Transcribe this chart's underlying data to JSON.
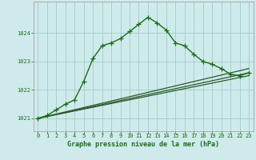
{
  "title": "Graphe pression niveau de la mer (hPa)",
  "background_color": "#ceeaea",
  "grid_color": "#a0cccc",
  "line_color_main": "#1a6e1a",
  "line_color_secondary": "#2a5a2a",
  "xlim": [
    -0.5,
    23.5
  ],
  "ylim": [
    1020.55,
    1025.1
  ],
  "yticks": [
    1021,
    1022,
    1023,
    1024
  ],
  "xticks": [
    0,
    1,
    2,
    3,
    4,
    5,
    6,
    7,
    8,
    9,
    10,
    11,
    12,
    13,
    14,
    15,
    16,
    17,
    18,
    19,
    20,
    21,
    22,
    23
  ],
  "main_line": [
    [
      0,
      1021.0
    ],
    [
      1,
      1021.1
    ],
    [
      2,
      1021.3
    ],
    [
      3,
      1021.5
    ],
    [
      4,
      1021.65
    ],
    [
      5,
      1022.3
    ],
    [
      6,
      1023.1
    ],
    [
      7,
      1023.55
    ],
    [
      8,
      1023.65
    ],
    [
      9,
      1023.8
    ],
    [
      10,
      1024.05
    ],
    [
      11,
      1024.3
    ],
    [
      12,
      1024.55
    ],
    [
      13,
      1024.35
    ],
    [
      14,
      1024.1
    ],
    [
      15,
      1023.65
    ],
    [
      16,
      1023.55
    ],
    [
      17,
      1023.25
    ],
    [
      18,
      1023.0
    ],
    [
      19,
      1022.9
    ],
    [
      20,
      1022.75
    ],
    [
      21,
      1022.55
    ],
    [
      22,
      1022.5
    ],
    [
      23,
      1022.6
    ]
  ],
  "straight_lines": [
    [
      [
        0,
        1021.0
      ],
      [
        23,
        1022.75
      ]
    ],
    [
      [
        0,
        1021.0
      ],
      [
        23,
        1022.5
      ]
    ],
    [
      [
        0,
        1021.0
      ],
      [
        23,
        1022.6
      ]
    ]
  ]
}
